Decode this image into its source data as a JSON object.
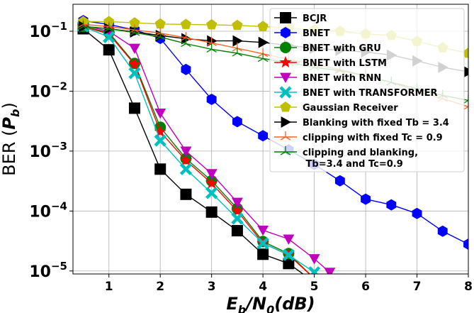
{
  "chart_data": {
    "type": "line",
    "title": "",
    "xlabel": "E_b/N_0(dB)",
    "ylabel": "BER (P_b)",
    "xlim": [
      0.3,
      8.0
    ],
    "ylim_log10": [
      -5.05,
      -0.55
    ],
    "yscale": "log",
    "grid": true,
    "legend_position": "top-right",
    "x_ticks": [
      "1",
      "2",
      "3",
      "4",
      "5",
      "6",
      "7",
      "8"
    ],
    "x_tick_values": [
      1,
      2,
      3,
      4,
      5,
      6,
      7,
      8
    ],
    "y_tick_exponents": [
      -1,
      -2,
      -3,
      -4,
      -5
    ],
    "series": [
      {
        "name": "BCJR",
        "color": "#000000",
        "marker": "square",
        "x": [
          0.5,
          1,
          1.5,
          2,
          2.5,
          3,
          3.5,
          4,
          4.5,
          5
        ],
        "y": [
          0.11,
          0.049,
          0.0052,
          0.0005,
          0.00019,
          9.6e-05,
          4.7e-05,
          1.9e-05,
          1.33e-05,
          6.5e-06
        ]
      },
      {
        "name": "BNET",
        "color": "#0000ff",
        "marker": "hexagon",
        "x": [
          0.5,
          1,
          1.5,
          2,
          2.5,
          3,
          3.5,
          4,
          4.5,
          5,
          5.5,
          6,
          6.5,
          7,
          7.5,
          8
        ],
        "y": [
          0.15,
          0.13,
          0.105,
          0.076,
          0.023,
          0.0073,
          0.0031,
          0.0018,
          0.00105,
          0.0006,
          0.00032,
          0.000158,
          0.000127,
          9.1e-05,
          4.6e-05,
          2.8e-05
        ]
      },
      {
        "name": "BNET with GRU",
        "color": "#008000",
        "marker": "circle",
        "x": [
          0.5,
          1,
          1.5,
          2,
          2.5,
          3,
          3.5,
          4,
          4.5,
          5
        ],
        "y": [
          0.12,
          0.095,
          0.029,
          0.0025,
          0.00075,
          0.00032,
          0.00011,
          3.1e-05,
          1.95e-05,
          7.5e-06
        ]
      },
      {
        "name": "BNET with LSTM",
        "color": "#ff0000",
        "marker": "star",
        "x": [
          0.5,
          1,
          1.5,
          2,
          2.5,
          3,
          3.5,
          4,
          4.5,
          5
        ],
        "y": [
          0.12,
          0.09,
          0.028,
          0.0021,
          0.0007,
          0.00029,
          0.0001,
          2.9e-05,
          1.85e-05,
          7.5e-06
        ]
      },
      {
        "name": "BNET with RNN",
        "color": "#bf00bf",
        "marker": "triangle-down",
        "x": [
          0.5,
          1,
          1.5,
          2,
          2.5,
          3,
          3.5,
          4,
          4.5,
          5,
          5.3
        ],
        "y": [
          0.125,
          0.1,
          0.052,
          0.0043,
          0.001,
          0.00042,
          0.00014,
          4.8e-05,
          3.4e-05,
          1.6e-05,
          9.5e-06
        ]
      },
      {
        "name": "BNET with TRANSFORMER",
        "color": "#00bfbf",
        "marker": "x",
        "x": [
          0.5,
          1,
          1.5,
          2,
          2.5,
          3,
          3.5,
          4,
          4.5,
          5
        ],
        "y": [
          0.12,
          0.08,
          0.02,
          0.0015,
          0.0005,
          0.0002,
          7.5e-05,
          2.9e-05,
          1.85e-05,
          9.5e-06
        ]
      },
      {
        "name": "Gaussian Receiver",
        "color": "#bfbf00",
        "marker": "pentagon",
        "x": [
          0.5,
          1,
          1.5,
          2,
          2.5,
          3,
          3.5,
          4,
          4.5,
          5,
          5.5,
          6,
          6.5,
          7,
          7.5,
          8
        ],
        "y": [
          0.145,
          0.145,
          0.138,
          0.132,
          0.13,
          0.128,
          0.125,
          0.12,
          0.113,
          0.105,
          0.1,
          0.09,
          0.085,
          0.068,
          0.053,
          0.043
        ]
      },
      {
        "name": "Blanking with fixed Tb = 3.4",
        "color": "#000000",
        "marker": "triangle-right",
        "x": [
          0.5,
          1,
          1.5,
          2,
          2.5,
          3,
          3.5,
          4,
          4.5,
          5,
          5.5,
          6,
          6.5,
          7,
          7.5,
          8
        ],
        "y": [
          0.12,
          0.11,
          0.097,
          0.085,
          0.075,
          0.069,
          0.069,
          0.065,
          0.058,
          0.052,
          0.048,
          0.045,
          0.04,
          0.032,
          0.025,
          0.021
        ]
      },
      {
        "name": "clipping with fixed Tc = 0.9",
        "color": "#ff6020",
        "marker": "tri",
        "x": [
          0.5,
          1,
          1.5,
          2,
          2.5,
          3,
          3.5,
          4,
          4.5,
          5,
          5.5,
          6,
          6.5,
          7,
          7.5,
          8
        ],
        "y": [
          0.13,
          0.12,
          0.105,
          0.093,
          0.078,
          0.064,
          0.052,
          0.042,
          0.034,
          0.028,
          0.023,
          0.018,
          0.014,
          0.01,
          0.0075,
          0.0055
        ]
      },
      {
        "name": "clipping and blanking,\n Tb=3.4 and Tc=0.9",
        "color": "#008000",
        "marker": "tri",
        "x": [
          0.5,
          1,
          1.5,
          2,
          2.5,
          3,
          3.5,
          4,
          4.5,
          5,
          5.5,
          6,
          6.5,
          7,
          7.5,
          8
        ],
        "y": [
          0.12,
          0.11,
          0.095,
          0.08,
          0.062,
          0.05,
          0.043,
          0.035,
          0.03,
          0.025,
          0.022,
          0.018,
          0.014,
          0.011,
          0.0085,
          0.007
        ]
      }
    ]
  }
}
